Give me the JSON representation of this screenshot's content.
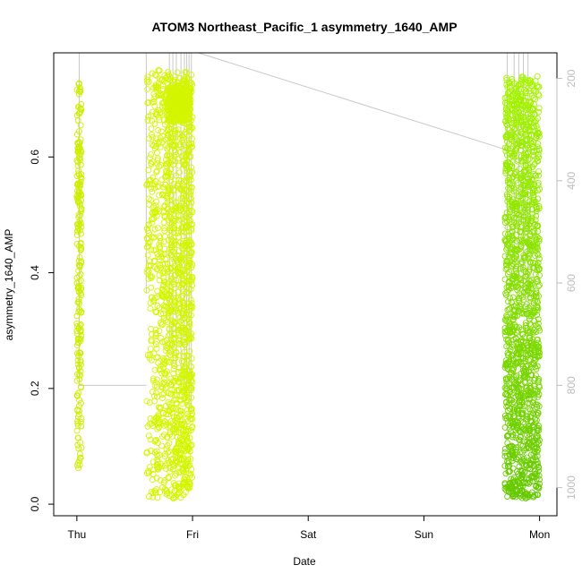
{
  "chart_data": {
    "type": "scatter",
    "title": "ATOM3 Northeast_Pacific_1 asymmetry_1640_AMP",
    "xlabel": "Date",
    "ylabel": "asymmetry_1640_AMP",
    "x_ticks": [
      "Thu",
      "Fri",
      "Sat",
      "Sun",
      "Mon"
    ],
    "y_ticks": [
      "0.0",
      "0.2",
      "0.4",
      "0.6"
    ],
    "ylim": [
      -0.02,
      0.78
    ],
    "y_right_ticks": [
      "200",
      "400",
      "600",
      "800",
      "1000"
    ],
    "y_right_lim": [
      1055,
      150
    ],
    "xlim_days": [
      -0.2,
      4.15
    ],
    "grid": false,
    "legend": "none",
    "colors": {
      "thu_points": "#ccee00",
      "fri_points": "#d4f500",
      "mon_points": "#77ee00",
      "depth_line": "#c8c8c8",
      "axis": "#000000",
      "right_axis": "#bdbdbd"
    },
    "series": [
      {
        "x_range_days": [
          0.0,
          0.04
        ],
        "y_range": [
          0.05,
          0.73
        ],
        "values": [
          [
            0.01,
            0.05
          ],
          [
            0.02,
            0.07
          ],
          [
            0.01,
            0.14
          ],
          [
            0.02,
            0.17
          ],
          [
            0.03,
            0.2
          ],
          [
            0.01,
            0.3
          ],
          [
            0.02,
            0.38
          ],
          [
            0.01,
            0.42
          ],
          [
            0.03,
            0.45
          ],
          [
            0.02,
            0.5
          ],
          [
            0.01,
            0.55
          ],
          [
            0.02,
            0.6
          ],
          [
            0.03,
            0.63
          ],
          [
            0.02,
            0.67
          ],
          [
            0.01,
            0.72
          ]
        ]
      },
      {
        "x_range_days": [
          0.6,
          1.0
        ],
        "y_range": [
          0.01,
          0.75
        ],
        "values": [
          [
            0.62,
            0.05
          ],
          [
            0.65,
            0.15
          ],
          [
            0.7,
            0.3
          ],
          [
            0.75,
            0.45
          ],
          [
            0.8,
            0.6
          ],
          [
            0.85,
            0.7
          ],
          [
            0.9,
            0.68
          ],
          [
            0.95,
            0.5
          ],
          [
            0.98,
            0.3
          ],
          [
            0.99,
            0.15
          ],
          [
            0.97,
            0.05
          ]
        ]
      },
      {
        "x_range_days": [
          3.7,
          4.0
        ],
        "y_range": [
          0.01,
          0.74
        ],
        "values": [
          [
            3.72,
            0.02
          ],
          [
            3.75,
            0.1
          ],
          [
            3.78,
            0.25
          ],
          [
            3.8,
            0.4
          ],
          [
            3.83,
            0.55
          ],
          [
            3.86,
            0.68
          ],
          [
            3.9,
            0.72
          ],
          [
            3.93,
            0.6
          ],
          [
            3.96,
            0.45
          ],
          [
            3.98,
            0.3
          ],
          [
            3.99,
            0.15
          ],
          [
            3.97,
            0.05
          ]
        ]
      }
    ]
  }
}
